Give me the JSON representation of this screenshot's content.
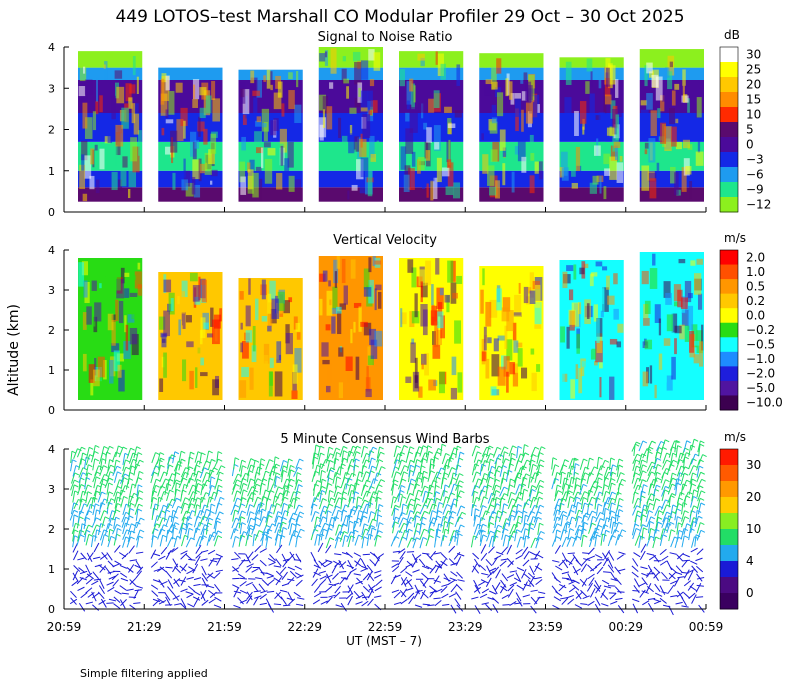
{
  "title": "449 LOTOS–test Marshall CO Modular Profiler 29 Oct – 30 Oct 2025",
  "ylabel": "Altitude (km)",
  "xlabel": "UT  (MST – 7)",
  "footnote": "Simple filtering applied",
  "x_ticks": [
    "20:59",
    "21:29",
    "21:59",
    "22:29",
    "22:59",
    "23:29",
    "23:59",
    "00:29",
    "00:59"
  ],
  "y_ticks": [
    "0",
    "1",
    "2",
    "3",
    "4"
  ],
  "chart_data": [
    {
      "type": "heatmap",
      "id": "snr",
      "title": "Signal to Noise Ratio",
      "unit": "dB",
      "ylim": [
        0,
        4
      ],
      "colorbar_labels": [
        "30",
        "25",
        "20",
        "15",
        "10",
        "5",
        "0",
        "−3",
        "−6",
        "−9",
        "−12"
      ],
      "colors": [
        "#ffffff",
        "#ffff00",
        "#ffc800",
        "#ff8c00",
        "#ff2a00",
        "#5a0a6e",
        "#4b0a9a",
        "#1428e6",
        "#1e9bf0",
        "#1ee68c",
        "#8cf01e"
      ],
      "segments": [
        {
          "start": "20:59",
          "end": "21:29",
          "top_km": 3.9
        },
        {
          "start": "21:29",
          "end": "21:59",
          "top_km": 3.5
        },
        {
          "start": "21:59",
          "end": "22:29",
          "top_km": 3.45
        },
        {
          "start": "22:29",
          "end": "22:59",
          "top_km": 4.0
        },
        {
          "start": "22:59",
          "end": "23:29",
          "top_km": 3.9
        },
        {
          "start": "23:29",
          "end": "23:59",
          "top_km": 3.85
        },
        {
          "start": "23:59",
          "end": "00:29",
          "top_km": 3.75
        },
        {
          "start": "00:29",
          "end": "00:59",
          "top_km": 3.95
        }
      ],
      "bands": [
        {
          "from_km": 0.25,
          "to_km": 0.6,
          "level": "5"
        },
        {
          "from_km": 0.6,
          "to_km": 1.0,
          "level": "−3"
        },
        {
          "from_km": 1.0,
          "to_km": 1.7,
          "level": "−9"
        },
        {
          "from_km": 1.7,
          "to_km": 2.4,
          "level": "−3"
        },
        {
          "from_km": 2.4,
          "to_km": 3.2,
          "level": "0"
        },
        {
          "from_km": 3.2,
          "to_km": 3.5,
          "level": "−6"
        },
        {
          "from_km": 3.5,
          "to_km": 4.0,
          "level": "−12"
        }
      ]
    },
    {
      "type": "heatmap",
      "id": "vvel",
      "title": "Vertical Velocity",
      "unit": "m/s",
      "ylim": [
        0,
        4
      ],
      "colorbar_labels": [
        "2.0",
        "1.0",
        "0.5",
        "0.2",
        "0.0",
        "−0.2",
        "−0.5",
        "−1.0",
        "−2.0",
        "−5.0",
        "−10.0"
      ],
      "colors": [
        "#ff0000",
        "#ff5000",
        "#ff9600",
        "#ffc800",
        "#ffff00",
        "#28dc14",
        "#14ffff",
        "#1e8cff",
        "#1e1edc",
        "#5014a0",
        "#3c0050"
      ],
      "segments": [
        {
          "start": "20:59",
          "end": "21:29",
          "top_km": 3.8,
          "level": "−0.2"
        },
        {
          "start": "21:29",
          "end": "21:59",
          "top_km": 3.45,
          "level": "0.2"
        },
        {
          "start": "21:59",
          "end": "22:29",
          "top_km": 3.3,
          "level": "0.2"
        },
        {
          "start": "22:29",
          "end": "22:59",
          "top_km": 3.85,
          "level": "0.5"
        },
        {
          "start": "22:59",
          "end": "23:29",
          "top_km": 3.8,
          "level": "0.0"
        },
        {
          "start": "23:29",
          "end": "23:59",
          "top_km": 3.6,
          "level": "0.0"
        },
        {
          "start": "23:59",
          "end": "00:29",
          "top_km": 3.75,
          "level": "−0.5"
        },
        {
          "start": "00:29",
          "end": "00:59",
          "top_km": 3.95,
          "level": "−0.5"
        }
      ]
    },
    {
      "type": "scatter",
      "id": "wind",
      "title": "5 Minute Consensus Wind Barbs",
      "unit": "m/s",
      "ylim": [
        0,
        4
      ],
      "colorbar_labels": [
        "30",
        "20",
        "10",
        "4",
        "0"
      ],
      "colors": [
        "#ff1a00",
        "#ff5a00",
        "#ff9900",
        "#ffcc00",
        "#88ee22",
        "#22dd66",
        "#22aaee",
        "#1a1ad6",
        "#4b0a82",
        "#3a0060"
      ],
      "segments": [
        {
          "start": "20:59",
          "end": "21:29",
          "top_km": 3.9
        },
        {
          "start": "21:29",
          "end": "21:59",
          "top_km": 3.8
        },
        {
          "start": "21:59",
          "end": "22:29",
          "top_km": 3.6
        },
        {
          "start": "22:29",
          "end": "22:59",
          "top_km": 3.9
        },
        {
          "start": "22:59",
          "end": "23:29",
          "top_km": 3.9
        },
        {
          "start": "23:29",
          "end": "23:59",
          "top_km": 3.9
        },
        {
          "start": "23:59",
          "end": "00:29",
          "top_km": 3.6
        },
        {
          "start": "00:29",
          "end": "00:59",
          "top_km": 4.0
        }
      ],
      "speed_profile": [
        {
          "from_km": 0.0,
          "to_km": 1.5,
          "speed_ms": 2
        },
        {
          "from_km": 1.5,
          "to_km": 2.5,
          "speed_ms": 6
        },
        {
          "from_km": 2.5,
          "to_km": 4.0,
          "speed_ms": 9
        }
      ]
    }
  ]
}
